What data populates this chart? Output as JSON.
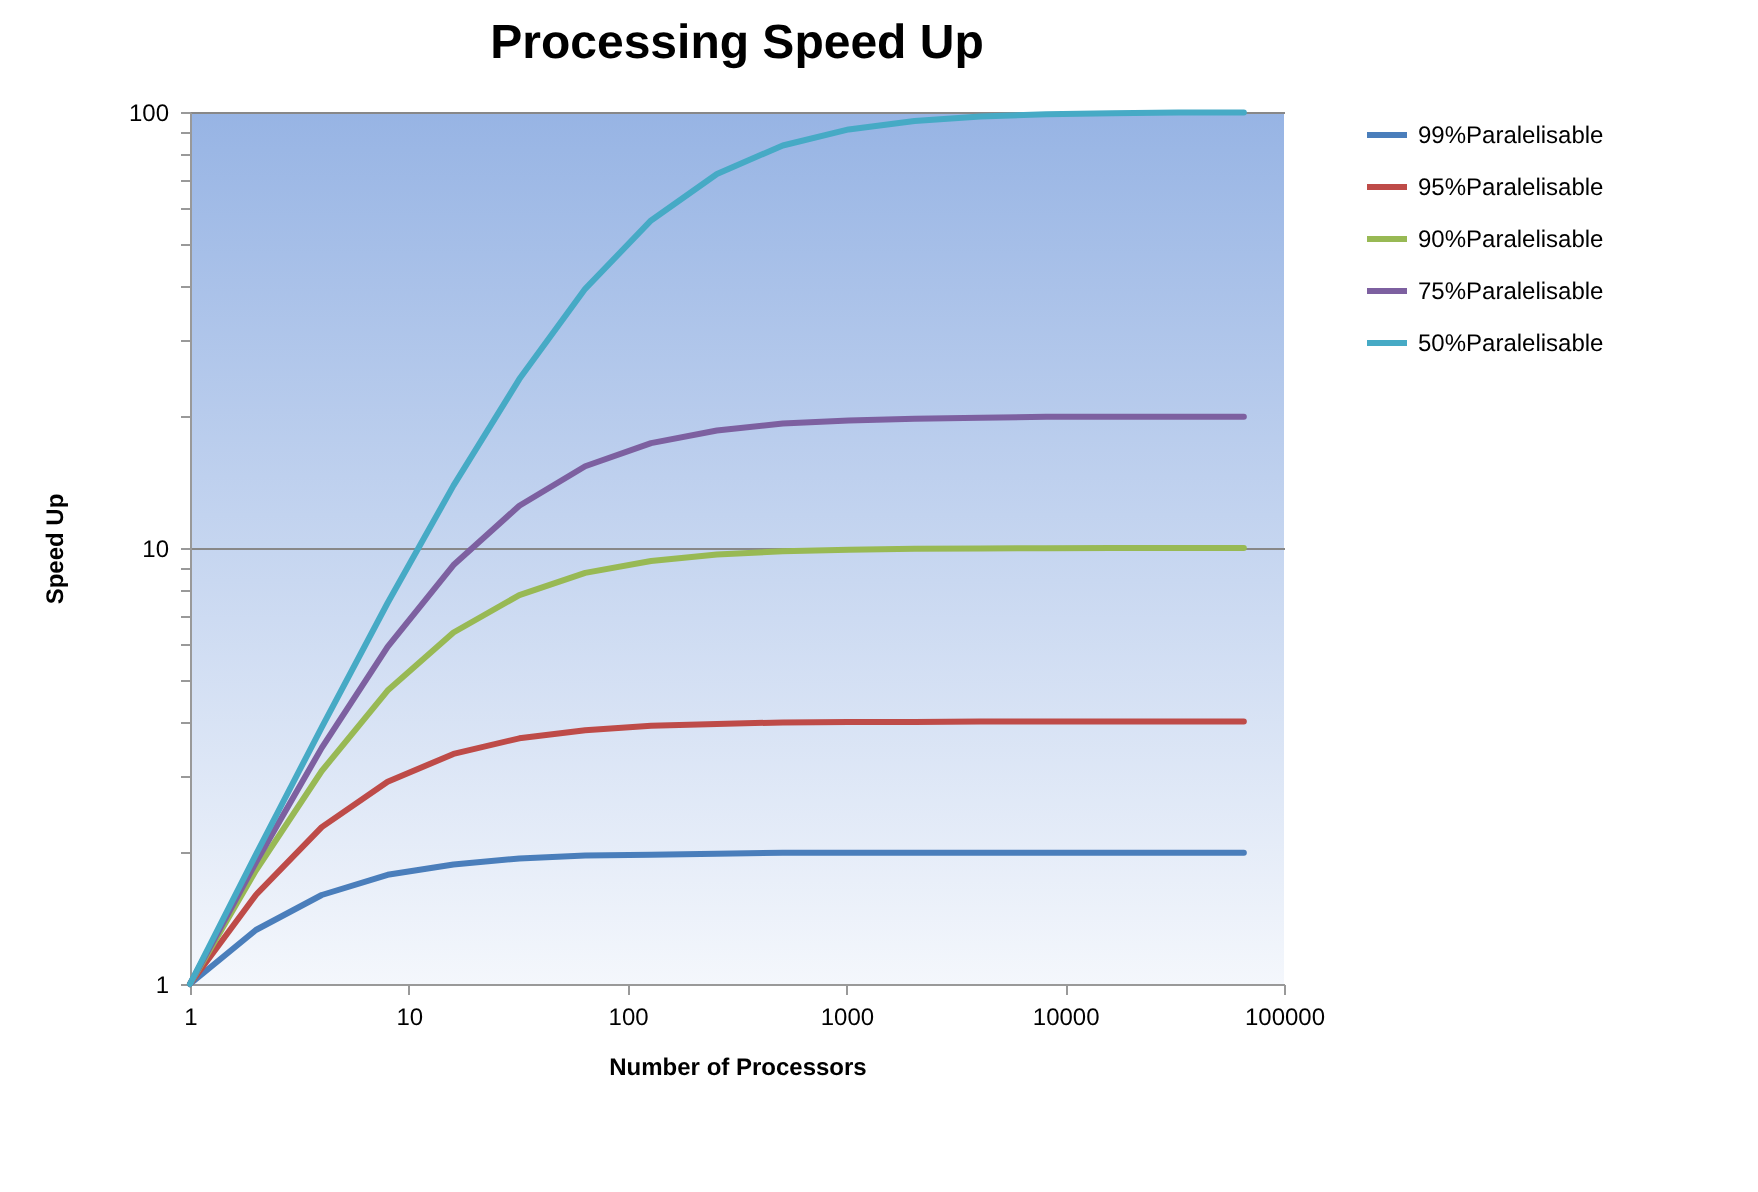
{
  "chart_data": {
    "type": "line",
    "title": "Processing Speed Up",
    "xlabel": "Number of Processors",
    "ylabel": "Speed Up",
    "x": [
      1,
      2,
      4,
      8,
      16,
      32,
      64,
      128,
      256,
      512,
      1024,
      2048,
      4096,
      8192,
      16384,
      32768,
      65536
    ],
    "series": [
      {
        "name": "99%Paralelisable",
        "color": "#4a7ebb",
        "values": [
          1,
          1.33,
          1.6,
          1.78,
          1.88,
          1.94,
          1.97,
          1.98,
          1.99,
          2.0,
          2.0,
          2.0,
          2.0,
          2.0,
          2.0,
          2.0,
          2.0
        ]
      },
      {
        "name": "95%Paralelisable",
        "color": "#be4b48",
        "values": [
          1,
          1.6,
          2.29,
          2.91,
          3.37,
          3.66,
          3.82,
          3.91,
          3.95,
          3.98,
          3.99,
          3.99,
          4.0,
          4.0,
          4.0,
          4.0,
          4.0
        ]
      },
      {
        "name": "90%Paralelisable",
        "color": "#98b954",
        "values": [
          1,
          1.82,
          3.08,
          4.71,
          6.4,
          7.8,
          8.77,
          9.34,
          9.66,
          9.83,
          9.91,
          9.96,
          9.98,
          9.99,
          10.0,
          10.0,
          10.0
        ]
      },
      {
        "name": "75%Paralelisable",
        "color": "#7d60a0",
        "values": [
          1,
          1.9,
          3.48,
          5.93,
          9.14,
          12.5,
          15.4,
          17.4,
          18.6,
          19.3,
          19.6,
          19.8,
          19.9,
          20.0,
          20.0,
          20.0,
          20.0
        ]
      },
      {
        "name": "50%Paralelisable",
        "color": "#46aac5",
        "values": [
          1,
          1.98,
          3.88,
          7.48,
          13.9,
          24.4,
          39.3,
          56.4,
          72.1,
          83.8,
          91.2,
          95.4,
          97.6,
          98.8,
          99.4,
          99.7,
          99.8
        ]
      }
    ],
    "log": "xy",
    "xlim": [
      1,
      100000
    ],
    "xticks": [
      1,
      10,
      100,
      1000,
      10000,
      100000
    ],
    "ylim": [
      1,
      100
    ],
    "yticks": [
      1,
      {
        "value": 2,
        "label": null
      },
      {
        "value": 3,
        "label": null
      },
      {
        "value": 4,
        "label": null
      },
      {
        "value": 5,
        "label": null
      },
      {
        "value": 6,
        "label": null
      },
      {
        "value": 7,
        "label": null
      },
      {
        "value": 8,
        "label": null
      },
      {
        "value": 9,
        "label": null
      },
      10,
      {
        "value": 20,
        "label": null
      },
      {
        "value": 30,
        "label": null
      },
      {
        "value": 40,
        "label": null
      },
      {
        "value": 50,
        "label": null
      },
      {
        "value": 60,
        "label": null
      },
      {
        "value": 70,
        "label": null
      },
      {
        "value": 80,
        "label": null
      },
      {
        "value": 90,
        "label": null
      },
      100
    ],
    "grid": "y",
    "legend": "right",
    "marker": "none",
    "line_style": "solid"
  }
}
